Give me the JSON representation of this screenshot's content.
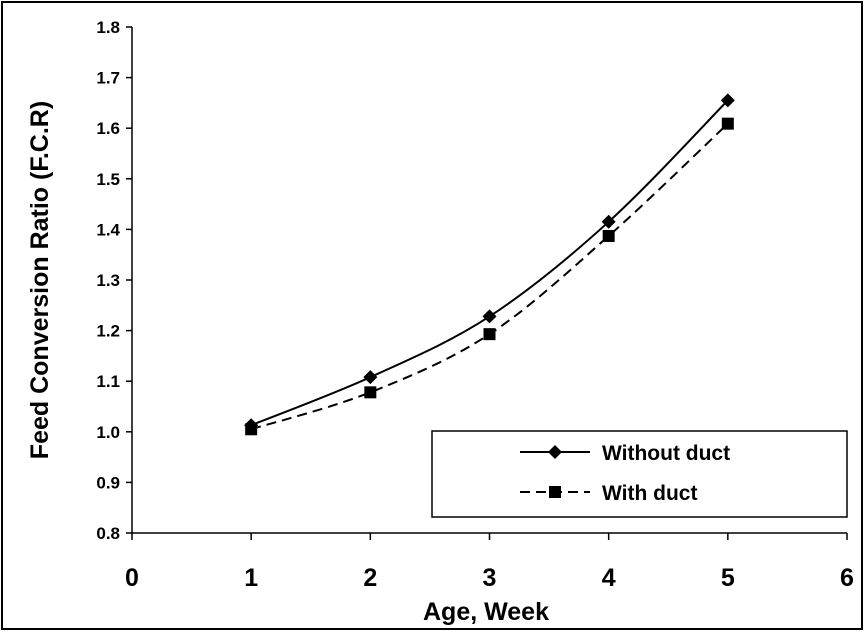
{
  "chart_data": {
    "type": "line",
    "xlabel": "Age, Week",
    "ylabel": "Feed Conversion Ratio (F.C.R)",
    "xlim": [
      0,
      6
    ],
    "ylim": [
      0.8,
      1.8
    ],
    "x_ticks": [
      "0",
      "1",
      "2",
      "3",
      "4",
      "5",
      "6"
    ],
    "y_ticks": [
      "0.8",
      "0.9",
      "1.0",
      "1.1",
      "1.2",
      "1.3",
      "1.4",
      "1.5",
      "1.6",
      "1.7",
      "1.8"
    ],
    "x": [
      1,
      2,
      3,
      4,
      5
    ],
    "grid": false,
    "legend_position": "bottom-right",
    "series": [
      {
        "name": "Without duct",
        "values": [
          1.013,
          1.108,
          1.228,
          1.415,
          1.655
        ],
        "marker": "diamond",
        "line_style": "solid",
        "color": "#000000"
      },
      {
        "name": "With duct",
        "values": [
          1.005,
          1.078,
          1.193,
          1.387,
          1.609
        ],
        "marker": "square",
        "line_style": "dashed",
        "color": "#000000"
      }
    ]
  }
}
